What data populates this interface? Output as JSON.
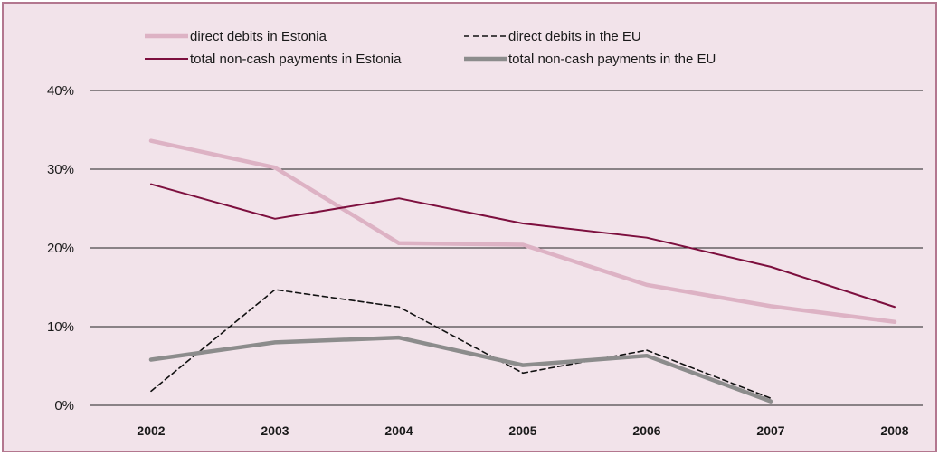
{
  "chart_data": {
    "type": "line",
    "title": "",
    "xlabel": "",
    "ylabel": "",
    "categories": [
      "2002",
      "2003",
      "2004",
      "2005",
      "2006",
      "2007",
      "2008"
    ],
    "ylim": [
      0,
      40
    ],
    "y_ticks": [
      0,
      10,
      20,
      30,
      40
    ],
    "y_tick_labels": [
      "0%",
      "10%",
      "20%",
      "30%",
      "40%"
    ],
    "grid": "horizontal",
    "legend_position": "top",
    "series": [
      {
        "name": "direct debits in Estonia",
        "values": [
          33.6,
          30.2,
          20.6,
          20.4,
          15.3,
          12.6,
          10.6
        ],
        "color": "#ddb2c4",
        "style": "solid-thick"
      },
      {
        "name": "direct debits in the EU",
        "values": [
          1.8,
          14.7,
          12.5,
          4.1,
          7.0,
          0.9,
          null
        ],
        "color": "#111111",
        "style": "dashed"
      },
      {
        "name": "total non-cash payments in Estonia",
        "values": [
          28.1,
          23.7,
          26.3,
          23.1,
          21.3,
          17.6,
          12.5
        ],
        "color": "#7d0f3e",
        "style": "solid"
      },
      {
        "name": "total non-cash payments in the EU",
        "values": [
          5.8,
          8.0,
          8.6,
          5.1,
          6.3,
          0.5,
          null
        ],
        "color": "#8c8c8c",
        "style": "solid-thick"
      }
    ]
  }
}
